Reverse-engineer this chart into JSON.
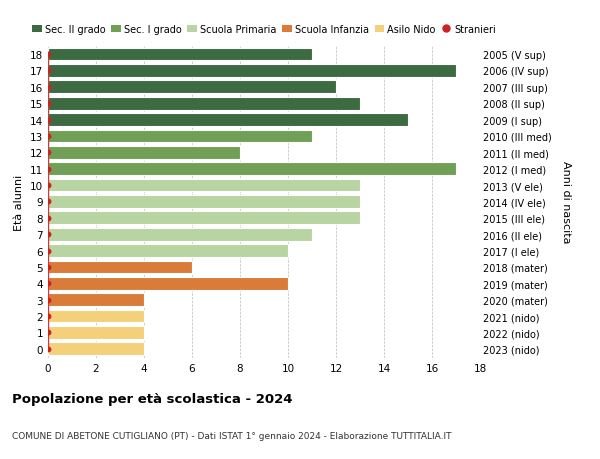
{
  "ages": [
    18,
    17,
    16,
    15,
    14,
    13,
    12,
    11,
    10,
    9,
    8,
    7,
    6,
    5,
    4,
    3,
    2,
    1,
    0
  ],
  "years": [
    "2005 (V sup)",
    "2006 (IV sup)",
    "2007 (III sup)",
    "2008 (II sup)",
    "2009 (I sup)",
    "2010 (III med)",
    "2011 (II med)",
    "2012 (I med)",
    "2013 (V ele)",
    "2014 (IV ele)",
    "2015 (III ele)",
    "2016 (II ele)",
    "2017 (I ele)",
    "2018 (mater)",
    "2019 (mater)",
    "2020 (mater)",
    "2021 (nido)",
    "2022 (nido)",
    "2023 (nido)"
  ],
  "bar_values": [
    11,
    17,
    12,
    13,
    15,
    11,
    8,
    17,
    13,
    13,
    13,
    11,
    10,
    6,
    10,
    4,
    4,
    4,
    4
  ],
  "bar_colors": [
    "#3d6b41",
    "#3d6b41",
    "#3d6b41",
    "#3d6b41",
    "#3d6b41",
    "#6fa055",
    "#6fa055",
    "#6fa055",
    "#b8d4a0",
    "#b8d4a0",
    "#b8d4a0",
    "#b8d4a0",
    "#b8d4a0",
    "#d97c3a",
    "#d97c3a",
    "#d97c3a",
    "#f5d07a",
    "#f5d07a",
    "#f5d07a"
  ],
  "stranieri_x": [
    0,
    0,
    0,
    0,
    0,
    0,
    0,
    0,
    0,
    0,
    0,
    0,
    0,
    0,
    0,
    0,
    0,
    0,
    0
  ],
  "legend_labels": [
    "Sec. II grado",
    "Sec. I grado",
    "Scuola Primaria",
    "Scuola Infanzia",
    "Asilo Nido",
    "Stranieri"
  ],
  "legend_colors": [
    "#3d6b41",
    "#6fa055",
    "#b8d4a0",
    "#d97c3a",
    "#f5d07a",
    "#cc2222"
  ],
  "title": "Popolazione per età scolastica - 2024",
  "subtitle": "COMUNE DI ABETONE CUTIGLIANO (PT) - Dati ISTAT 1° gennaio 2024 - Elaborazione TUTTITALIA.IT",
  "xlabel_left": "Età alunni",
  "xlabel_right": "Anni di nascita",
  "xlim": [
    0,
    18
  ],
  "xticks": [
    0,
    2,
    4,
    6,
    8,
    10,
    12,
    14,
    16,
    18
  ],
  "bg_color": "#ffffff",
  "grid_color": "#bbbbbb",
  "bar_height": 0.78
}
